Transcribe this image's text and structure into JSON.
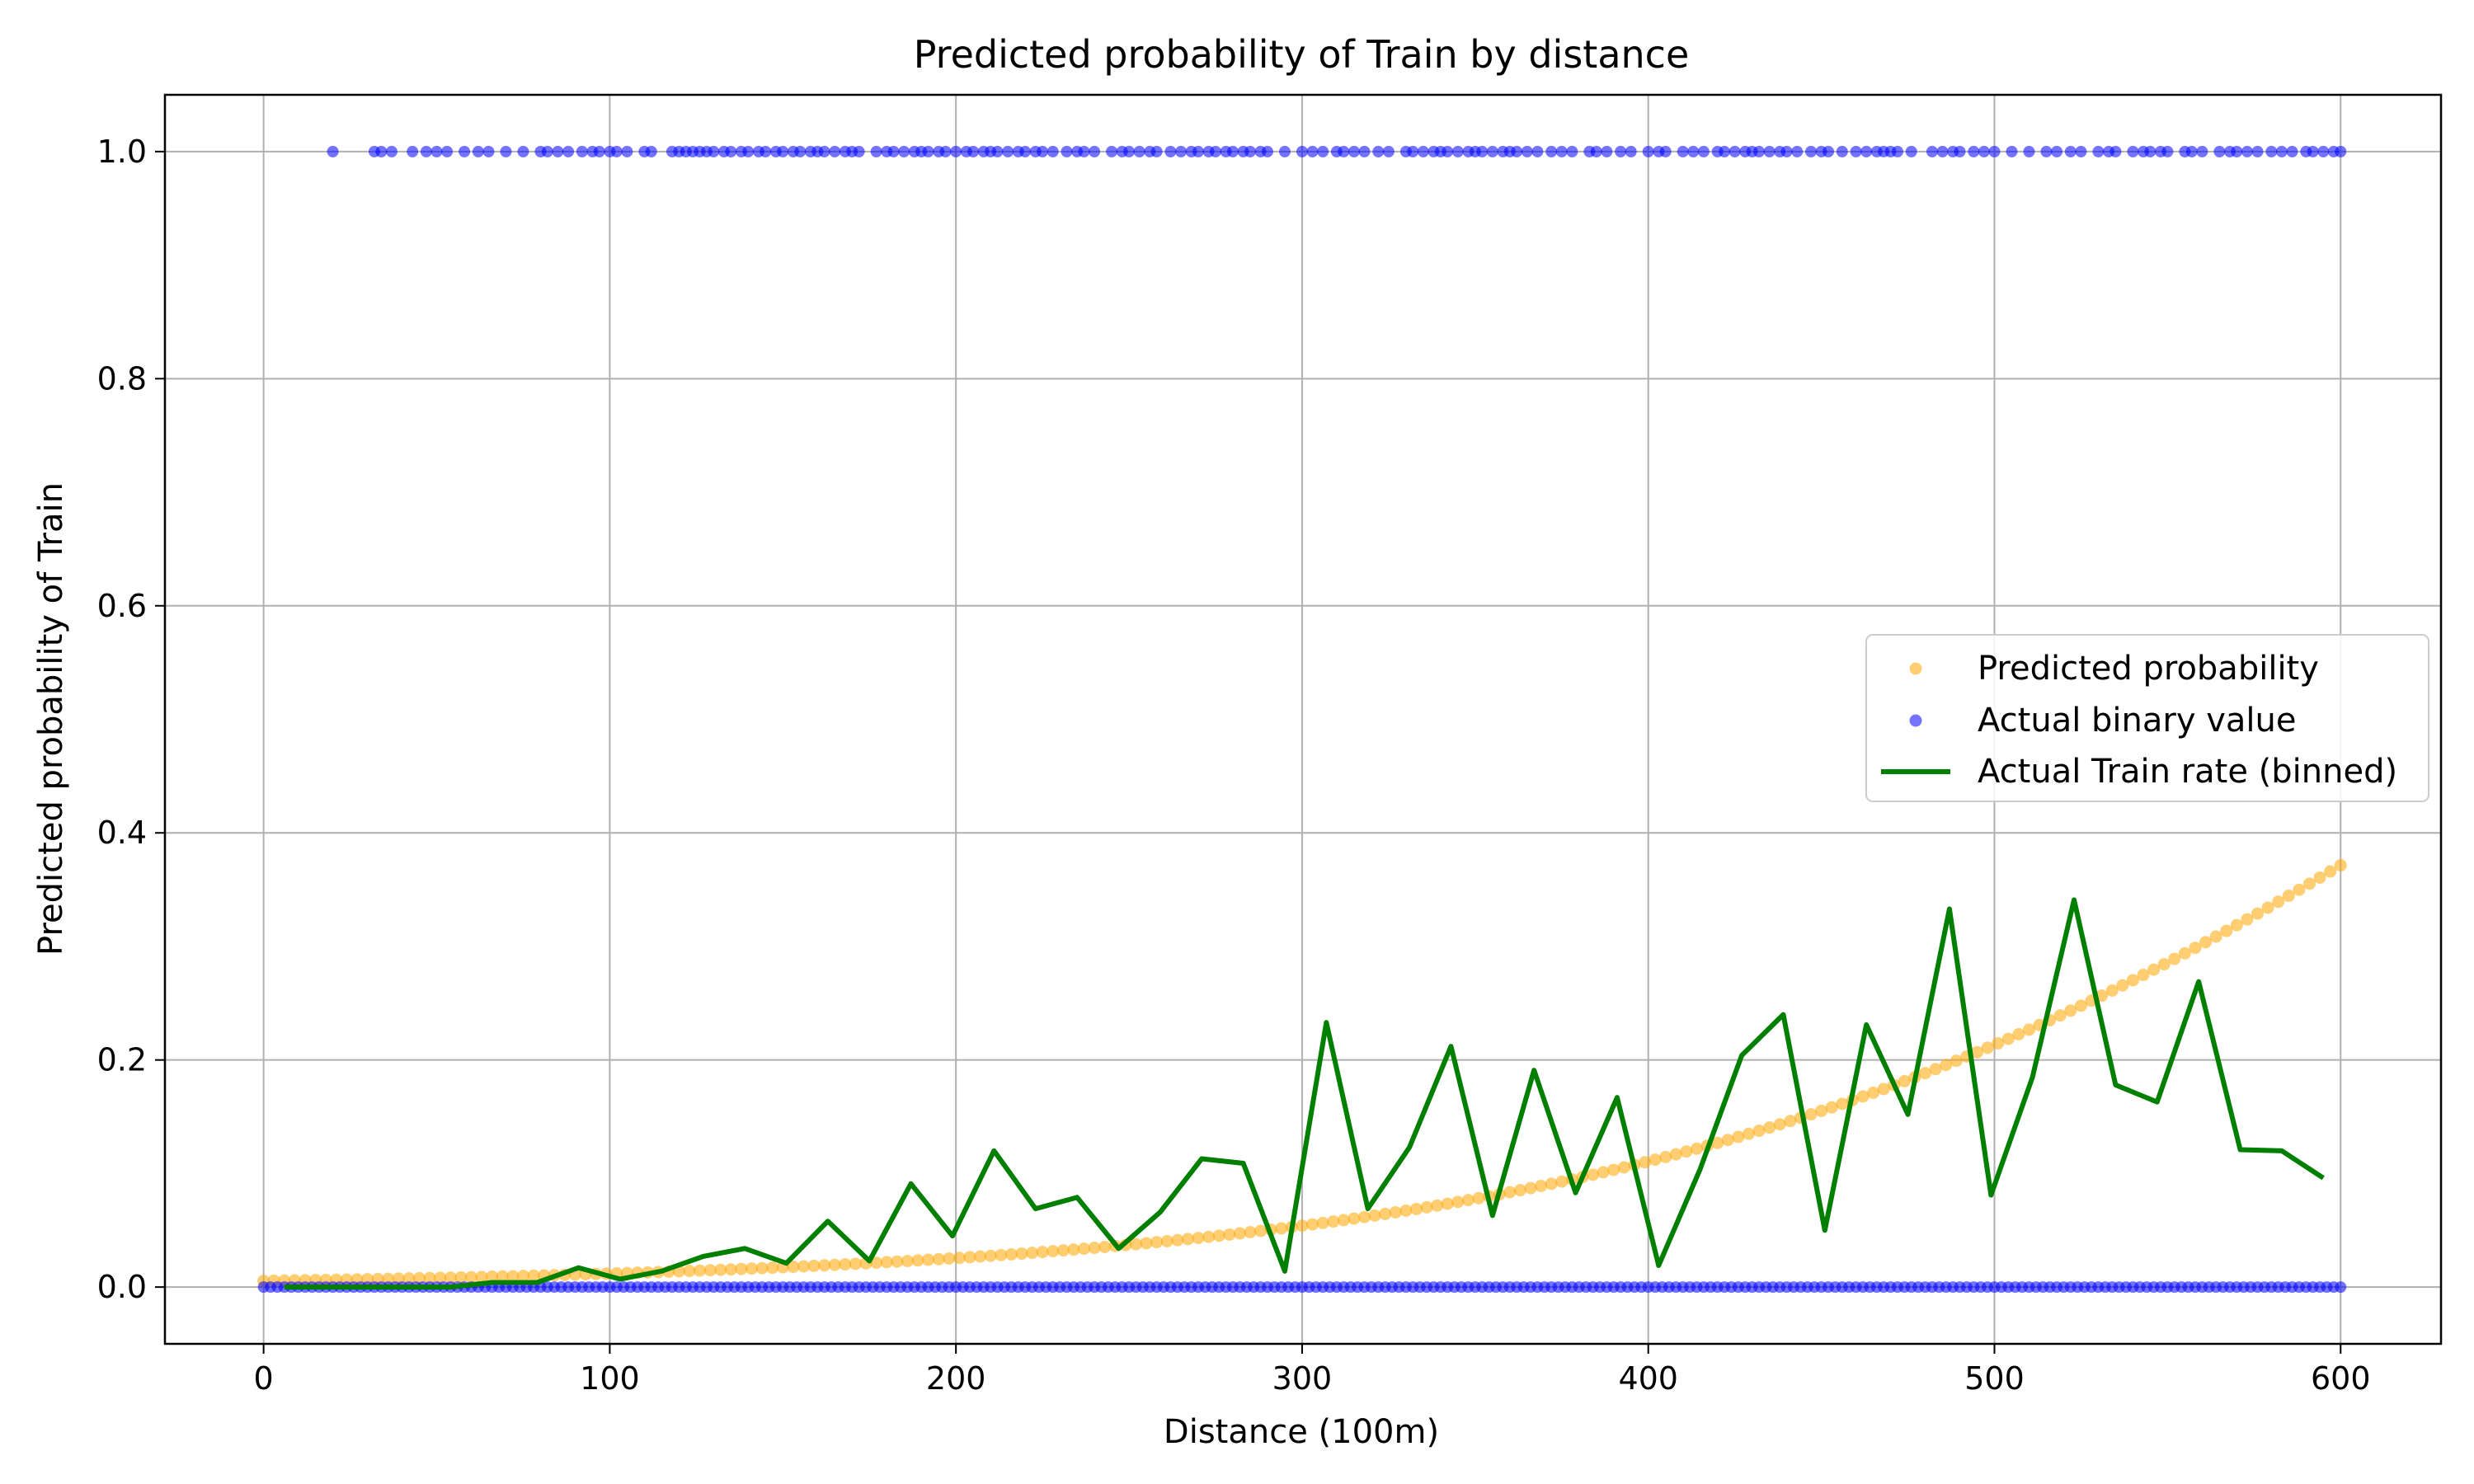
{
  "chart_data": {
    "type": "scatter",
    "title": "Predicted probability of Train by distance",
    "xlabel": "Distance (100m)",
    "ylabel": "Predicted probability of Train",
    "xlim": [
      -28.5,
      629
    ],
    "ylim": [
      -0.05,
      1.05
    ],
    "xticks": [
      0,
      100,
      200,
      300,
      400,
      500,
      600
    ],
    "xtick_labels": [
      "0",
      "100",
      "200",
      "300",
      "400",
      "500",
      "600"
    ],
    "yticks": [
      0.0,
      0.2,
      0.4,
      0.6,
      0.8,
      1.0
    ],
    "ytick_labels": [
      "0.0",
      "0.2",
      "0.4",
      "0.6",
      "0.8",
      "1.0"
    ],
    "grid": true,
    "legend_position": "center-right",
    "series": [
      {
        "name": "Predicted probability",
        "kind": "scatter",
        "color": "#ffa500",
        "curve": {
          "x_start": 0,
          "x_end": 600,
          "step": 3,
          "logistic_intercept": -5.2,
          "logistic_slope": 0.00779
        }
      },
      {
        "name": "Actual binary value",
        "kind": "scatter",
        "color": "#0000ff",
        "y1_x": [
          20,
          32,
          34,
          37,
          43,
          47,
          50,
          53,
          58,
          62,
          65,
          70,
          75,
          80,
          82,
          85,
          88,
          92,
          95,
          97,
          100,
          102,
          105,
          110,
          112,
          118,
          120,
          122,
          124,
          126,
          128,
          130,
          133,
          135,
          138,
          140,
          143,
          145,
          148,
          150,
          153,
          155,
          158,
          160,
          162,
          165,
          168,
          170,
          172,
          177,
          180,
          182,
          185,
          188,
          190,
          192,
          195,
          197,
          200,
          203,
          205,
          208,
          210,
          212,
          215,
          218,
          220,
          223,
          225,
          228,
          232,
          235,
          237,
          240,
          245,
          248,
          250,
          253,
          256,
          258,
          262,
          265,
          268,
          270,
          273,
          275,
          278,
          280,
          283,
          285,
          288,
          290,
          295,
          300,
          303,
          306,
          310,
          312,
          315,
          318,
          322,
          325,
          330,
          332,
          335,
          338,
          340,
          342,
          345,
          348,
          350,
          352,
          355,
          358,
          360,
          362,
          365,
          368,
          372,
          375,
          378,
          383,
          385,
          388,
          392,
          395,
          400,
          403,
          405,
          410,
          413,
          416,
          420,
          422,
          425,
          428,
          430,
          432,
          435,
          438,
          440,
          443,
          447,
          450,
          452,
          456,
          460,
          463,
          466,
          468,
          470,
          472,
          476,
          482,
          485,
          488,
          490,
          494,
          497,
          500,
          505,
          510,
          515,
          518,
          522,
          525,
          530,
          533,
          535,
          540,
          543,
          545,
          548,
          550,
          555,
          557,
          560,
          565,
          568,
          570,
          573,
          576,
          580,
          583,
          586,
          590,
          592,
          595,
          598,
          600
        ],
        "y0_x_range": [
          0,
          600
        ],
        "y0_step": 2
      },
      {
        "name": "Actual Train rate (binned)",
        "kind": "line",
        "color": "#007f00",
        "x": [
          6,
          18,
          30,
          42,
          54,
          66,
          79,
          91,
          103,
          115,
          127,
          139,
          151,
          163,
          175,
          187,
          199,
          211,
          223,
          235,
          247,
          259,
          271,
          283,
          295,
          307,
          319,
          331,
          343,
          355,
          367,
          379,
          391,
          403,
          415,
          427,
          439,
          451,
          463,
          475,
          487,
          499,
          511,
          523,
          535,
          547,
          559,
          571,
          583,
          595
        ],
        "y": [
          0.0,
          0.0,
          0.0,
          0.0,
          0.0,
          0.004,
          0.004,
          0.017,
          0.007,
          0.014,
          0.027,
          0.034,
          0.021,
          0.058,
          0.023,
          0.091,
          0.045,
          0.12,
          0.069,
          0.079,
          0.034,
          0.066,
          0.113,
          0.109,
          0.014,
          0.233,
          0.069,
          0.123,
          0.212,
          0.063,
          0.191,
          0.083,
          0.167,
          0.019,
          0.104,
          0.204,
          0.24,
          0.05,
          0.231,
          0.152,
          0.333,
          0.081,
          0.185,
          0.341,
          0.178,
          0.163,
          0.269,
          0.121,
          0.12,
          0.096
        ]
      }
    ]
  }
}
